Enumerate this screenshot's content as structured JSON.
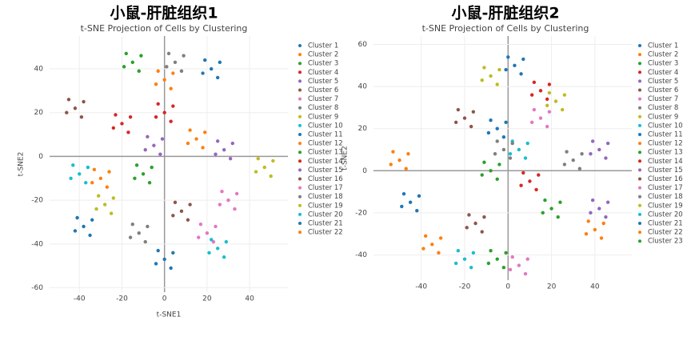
{
  "chart_data": [
    {
      "type": "scatter",
      "title": "小鼠-肝脏组织1",
      "subtitle": "t-SNE Projection of Cells by Clustering",
      "xlabel": "t-SNE1",
      "ylabel": "t-SNE2",
      "xlim": [
        -54,
        58
      ],
      "ylim": [
        -62,
        55
      ],
      "xticks": [
        -40,
        -20,
        0,
        20,
        40
      ],
      "yticks": [
        -60,
        -40,
        -20,
        0,
        20,
        40
      ],
      "grid": true,
      "series": [
        {
          "name": "Cluster 1",
          "color": "#1f77b4",
          "x": [
            22,
            26,
            18,
            25,
            19
          ],
          "y": [
            40,
            43,
            38,
            36,
            44
          ]
        },
        {
          "name": "Cluster 2",
          "color": "#ff7f0e",
          "x": [
            15,
            19,
            11,
            18,
            12
          ],
          "y": [
            8,
            11,
            6,
            4,
            12
          ]
        },
        {
          "name": "Cluster 3",
          "color": "#2ca02c",
          "x": [
            -15,
            -11,
            -19,
            -12,
            -18
          ],
          "y": [
            43,
            46,
            41,
            39,
            47
          ]
        },
        {
          "name": "Cluster 4",
          "color": "#d62728",
          "x": [
            -20,
            -16,
            -24,
            -17,
            -23
          ],
          "y": [
            15,
            18,
            13,
            11,
            19
          ]
        },
        {
          "name": "Cluster 5",
          "color": "#9467bd",
          "x": [
            -5,
            -1,
            -9,
            -2,
            -8
          ],
          "y": [
            5,
            8,
            3,
            1,
            9
          ]
        },
        {
          "name": "Cluster 6",
          "color": "#8c564b",
          "x": [
            -42,
            -38,
            -46,
            -39,
            -45
          ],
          "y": [
            22,
            25,
            20,
            18,
            26
          ]
        },
        {
          "name": "Cluster 7",
          "color": "#e377c2",
          "x": [
            30,
            34,
            26,
            33,
            27
          ],
          "y": [
            -20,
            -17,
            -22,
            -24,
            -16
          ]
        },
        {
          "name": "Cluster 8",
          "color": "#7f7f7f",
          "x": [
            5,
            9,
            1,
            8,
            2
          ],
          "y": [
            43,
            46,
            41,
            39,
            47
          ]
        },
        {
          "name": "Cluster 9",
          "color": "#bcbd22",
          "x": [
            -28,
            -24,
            -32,
            -25,
            -31
          ],
          "y": [
            -22,
            -19,
            -24,
            -26,
            -18
          ]
        },
        {
          "name": "Cluster 10",
          "color": "#17becf",
          "x": [
            -40,
            -36,
            -44,
            -37,
            -43
          ],
          "y": [
            -8,
            -5,
            -10,
            -12,
            -4
          ]
        },
        {
          "name": "Cluster 11",
          "color": "#1f77b4",
          "x": [
            0,
            4,
            -4,
            3,
            -3
          ],
          "y": [
            -47,
            -44,
            -49,
            -51,
            -43
          ]
        },
        {
          "name": "Cluster 12",
          "color": "#ff7f0e",
          "x": [
            -30,
            -26,
            -34,
            -27,
            -33
          ],
          "y": [
            -10,
            -7,
            -12,
            -14,
            -6
          ]
        },
        {
          "name": "Cluster 13",
          "color": "#2ca02c",
          "x": [
            -10,
            -6,
            -14,
            -7,
            -13
          ],
          "y": [
            -8,
            -5,
            -10,
            -12,
            -4
          ]
        },
        {
          "name": "Cluster 14",
          "color": "#d62728",
          "x": [
            0,
            4,
            -4,
            3,
            -3
          ],
          "y": [
            20,
            23,
            18,
            16,
            24
          ]
        },
        {
          "name": "Cluster 15",
          "color": "#9467bd",
          "x": [
            28,
            32,
            24,
            31,
            25
          ],
          "y": [
            3,
            6,
            1,
            -1,
            7
          ]
        },
        {
          "name": "Cluster 16",
          "color": "#8c564b",
          "x": [
            8,
            12,
            4,
            11,
            5
          ],
          "y": [
            -25,
            -22,
            -27,
            -29,
            -21
          ]
        },
        {
          "name": "Cluster 17",
          "color": "#e377c2",
          "x": [
            20,
            24,
            16,
            23,
            17
          ],
          "y": [
            -35,
            -32,
            -37,
            -39,
            -31
          ]
        },
        {
          "name": "Cluster 18",
          "color": "#7f7f7f",
          "x": [
            -12,
            -8,
            -16,
            -9,
            -15
          ],
          "y": [
            -35,
            -32,
            -37,
            -39,
            -31
          ]
        },
        {
          "name": "Cluster 19",
          "color": "#bcbd22",
          "x": [
            47,
            51,
            43,
            50,
            44
          ],
          "y": [
            -5,
            -2,
            -7,
            -9,
            -1
          ]
        },
        {
          "name": "Cluster 20",
          "color": "#17becf",
          "x": [
            25,
            29,
            21,
            28,
            22
          ],
          "y": [
            -42,
            -39,
            -44,
            -46,
            -38
          ]
        },
        {
          "name": "Cluster 21",
          "color": "#1f77b4",
          "x": [
            -38,
            -34,
            -42,
            -35,
            -41
          ],
          "y": [
            -32,
            -29,
            -34,
            -36,
            -28
          ]
        },
        {
          "name": "Cluster 22",
          "color": "#ff7f0e",
          "x": [
            0,
            4,
            -4,
            3,
            -3
          ],
          "y": [
            35,
            38,
            33,
            31,
            39
          ]
        }
      ]
    },
    {
      "type": "scatter",
      "title": "小鼠-肝脏组织2",
      "subtitle": "t-SNE Projection of Cells by Clustering",
      "ylabel": "t-SNE2",
      "xlim": [
        -62,
        57
      ],
      "ylim": [
        -52,
        64
      ],
      "xticks": [
        -40,
        -20,
        0,
        20,
        40
      ],
      "yticks": [
        -40,
        -20,
        0,
        20,
        40,
        60
      ],
      "grid": true,
      "series": [
        {
          "name": "Cluster 1",
          "color": "#1f77b4",
          "x": [
            -45,
            -41,
            -49,
            -42,
            -48
          ],
          "y": [
            -15,
            -12,
            -17,
            -19,
            -11
          ]
        },
        {
          "name": "Cluster 2",
          "color": "#ff7f0e",
          "x": [
            -50,
            -46,
            -54,
            -47,
            -53
          ],
          "y": [
            5,
            8,
            3,
            1,
            9
          ]
        },
        {
          "name": "Cluster 3",
          "color": "#2ca02c",
          "x": [
            -8,
            -4,
            -12,
            -5,
            -11
          ],
          "y": [
            0,
            3,
            -2,
            -4,
            4
          ]
        },
        {
          "name": "Cluster 4",
          "color": "#d62728",
          "x": [
            15,
            19,
            11,
            18,
            12
          ],
          "y": [
            38,
            41,
            36,
            34,
            42
          ]
        },
        {
          "name": "Cluster 5",
          "color": "#9467bd",
          "x": [
            42,
            46,
            38,
            45,
            39
          ],
          "y": [
            10,
            13,
            8,
            6,
            14
          ]
        },
        {
          "name": "Cluster 6",
          "color": "#8c564b",
          "x": [
            -20,
            -16,
            -24,
            -17,
            -23
          ],
          "y": [
            25,
            28,
            23,
            21,
            29
          ]
        },
        {
          "name": "Cluster 7",
          "color": "#e377c2",
          "x": [
            5,
            9,
            1,
            8,
            2
          ],
          "y": [
            -45,
            -42,
            -47,
            -49,
            -41
          ]
        },
        {
          "name": "Cluster 8",
          "color": "#7f7f7f",
          "x": [
            30,
            34,
            26,
            33,
            27
          ],
          "y": [
            5,
            8,
            3,
            1,
            9
          ]
        },
        {
          "name": "Cluster 9",
          "color": "#bcbd22",
          "x": [
            -8,
            -4,
            -12,
            -5,
            -11
          ],
          "y": [
            45,
            48,
            43,
            41,
            49
          ]
        },
        {
          "name": "Cluster 10",
          "color": "#17becf",
          "x": [
            5,
            9,
            1,
            8,
            2
          ],
          "y": [
            10,
            13,
            8,
            6,
            14
          ]
        },
        {
          "name": "Cluster 11",
          "color": "#1f77b4",
          "x": [
            -5,
            -1,
            -9,
            -2,
            -8
          ],
          "y": [
            20,
            23,
            18,
            16,
            24
          ]
        },
        {
          "name": "Cluster 12",
          "color": "#ff7f0e",
          "x": [
            40,
            44,
            36,
            43,
            37
          ],
          "y": [
            -28,
            -25,
            -30,
            -32,
            -24
          ]
        },
        {
          "name": "Cluster 13",
          "color": "#2ca02c",
          "x": [
            20,
            24,
            16,
            23,
            17
          ],
          "y": [
            -18,
            -15,
            -20,
            -22,
            -14
          ]
        },
        {
          "name": "Cluster 14",
          "color": "#d62728",
          "x": [
            10,
            14,
            6,
            13,
            7
          ],
          "y": [
            -5,
            -2,
            -7,
            -9,
            -1
          ]
        },
        {
          "name": "Cluster 15",
          "color": "#9467bd",
          "x": [
            42,
            46,
            38,
            45,
            39
          ],
          "y": [
            -18,
            -15,
            -20,
            -22,
            -14
          ]
        },
        {
          "name": "Cluster 16",
          "color": "#8c564b",
          "x": [
            -15,
            -11,
            -19,
            -12,
            -18
          ],
          "y": [
            -25,
            -22,
            -27,
            -29,
            -21
          ]
        },
        {
          "name": "Cluster 17",
          "color": "#e377c2",
          "x": [
            15,
            19,
            11,
            18,
            12
          ],
          "y": [
            25,
            28,
            23,
            21,
            29
          ]
        },
        {
          "name": "Cluster 18",
          "color": "#7f7f7f",
          "x": [
            -2,
            2,
            -6,
            1,
            -5
          ],
          "y": [
            10,
            13,
            8,
            6,
            14
          ]
        },
        {
          "name": "Cluster 19",
          "color": "#bcbd22",
          "x": [
            22,
            26,
            18,
            25,
            19
          ],
          "y": [
            33,
            36,
            31,
            29,
            37
          ]
        },
        {
          "name": "Cluster 20",
          "color": "#17becf",
          "x": [
            -20,
            -16,
            -24,
            -17,
            -23
          ],
          "y": [
            -42,
            -39,
            -44,
            -46,
            -38
          ]
        },
        {
          "name": "Cluster 21",
          "color": "#1f77b4",
          "x": [
            3,
            7,
            -1,
            6,
            0
          ],
          "y": [
            50,
            53,
            48,
            46,
            54
          ]
        },
        {
          "name": "Cluster 22",
          "color": "#ff7f0e",
          "x": [
            -35,
            -31,
            -39,
            -32,
            -38
          ],
          "y": [
            -35,
            -32,
            -37,
            -39,
            -31
          ]
        },
        {
          "name": "Cluster 23",
          "color": "#2ca02c",
          "x": [
            -5,
            -1,
            -9,
            -2,
            -8
          ],
          "y": [
            -42,
            -39,
            -44,
            -46,
            -38
          ]
        }
      ]
    }
  ]
}
